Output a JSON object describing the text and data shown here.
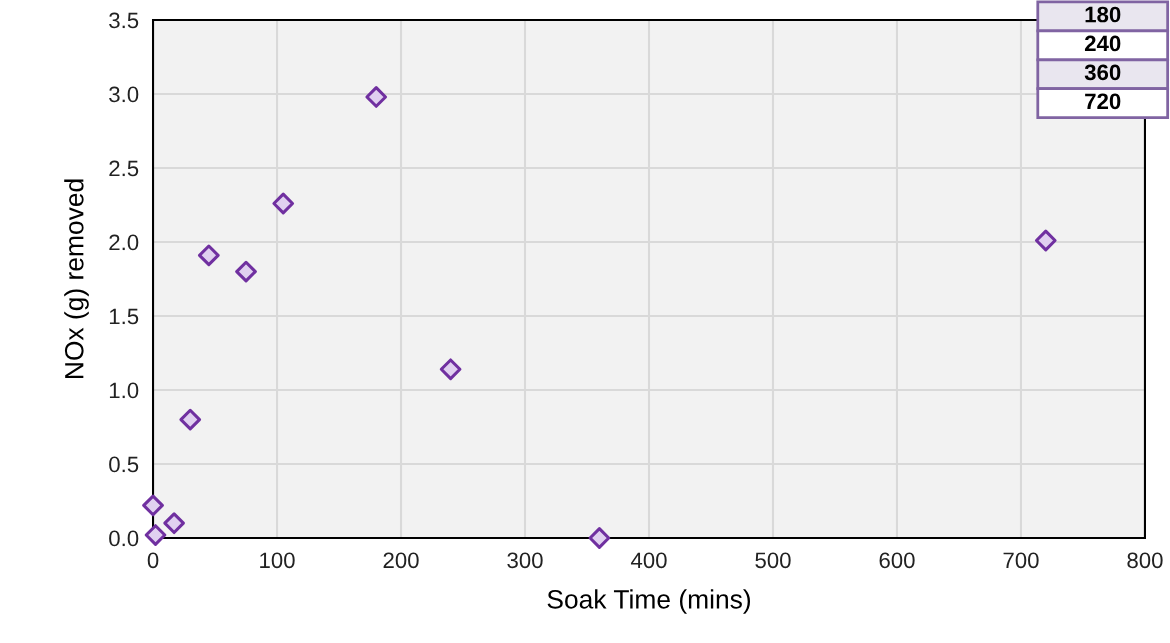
{
  "chart_data": {
    "type": "scatter",
    "xlabel": "Soak Time (mins)",
    "ylabel": "NOx (g) removed",
    "x": [
      0,
      2,
      17,
      30,
      45,
      75,
      105,
      180,
      240,
      360,
      720
    ],
    "series": [
      {
        "color": "#7030a0",
        "values": [
          0.22,
          0.02,
          0.1,
          0.8,
          1.91,
          1.8,
          2.26,
          2.98,
          1.14,
          0.0,
          2.01
        ]
      }
    ],
    "xlim": [
      0,
      800
    ],
    "xticks": [
      0,
      100,
      200,
      300,
      400,
      500,
      600,
      700,
      800
    ],
    "ylim": [
      0,
      3.5
    ],
    "yticks": [
      {
        "value": 0,
        "label": "0.0"
      },
      {
        "value": 0.5,
        "label": "0.5"
      },
      {
        "value": 1,
        "label": "1.0"
      },
      {
        "value": 1.5,
        "label": "1.5"
      },
      {
        "value": 2,
        "label": "2.0"
      },
      {
        "value": 2.5,
        "label": "2.5"
      },
      {
        "value": 3,
        "label": "3.0"
      },
      {
        "value": 3.5,
        "label": "3.5"
      }
    ],
    "grid": true,
    "marker": "diamond",
    "annotations": [
      "180",
      "240",
      "360",
      "720"
    ]
  }
}
